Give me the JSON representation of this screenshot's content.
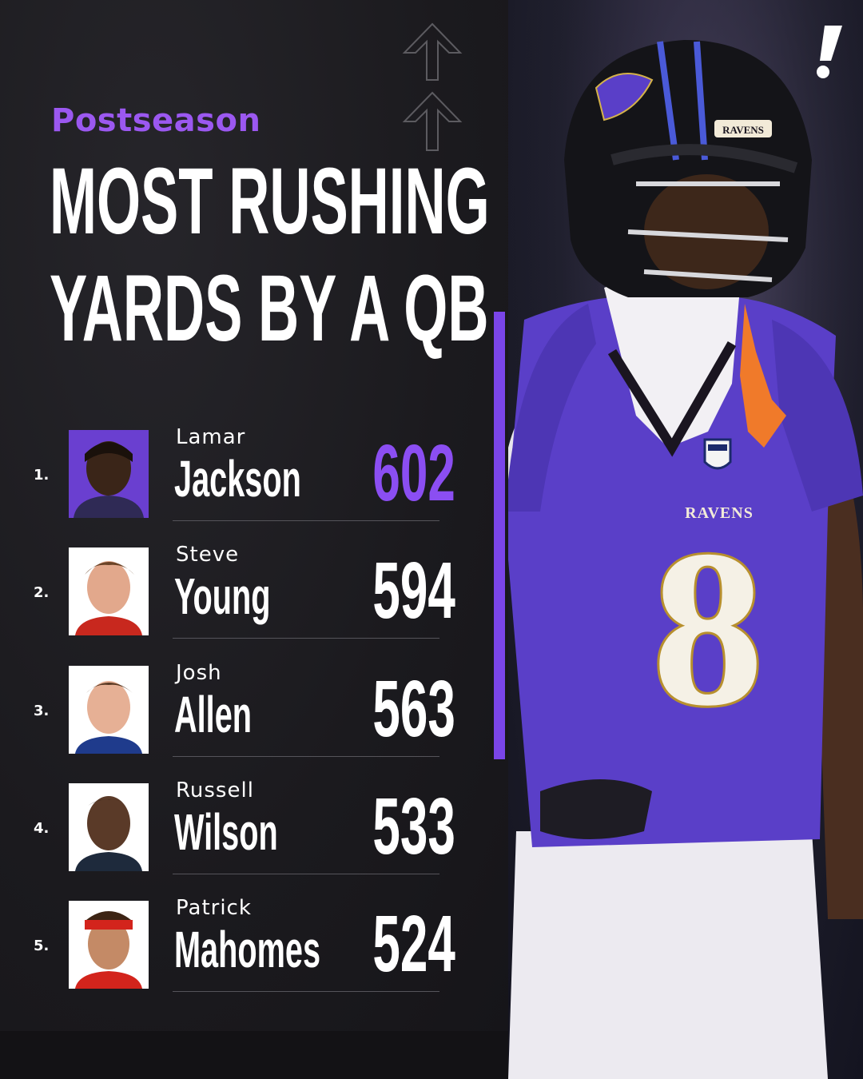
{
  "header": {
    "subtitle": "Postseason",
    "title_line1": "MOST RUSHING",
    "title_line2": "YARDS BY A QB"
  },
  "leaders": [
    {
      "rank": "1.",
      "first": "Lamar",
      "last": "Jackson",
      "yards": "602"
    },
    {
      "rank": "2.",
      "first": "Steve",
      "last": "Young",
      "yards": "594"
    },
    {
      "rank": "3.",
      "first": "Josh",
      "last": "Allen",
      "yards": "563"
    },
    {
      "rank": "4.",
      "first": "Russell",
      "last": "Wilson",
      "yards": "533"
    },
    {
      "rank": "5.",
      "first": "Patrick",
      "last": "Mahomes",
      "yards": "524"
    }
  ],
  "hero": {
    "jersey_number": "8",
    "jersey_wordmark": "RAVENS",
    "helmet_wordmark": "RAVENS"
  },
  "colors": {
    "accent": "#8b4ef2",
    "background": "#1b1a1d",
    "jersey": "#5a3fc8"
  },
  "icons": [
    "up-arrow-icon",
    "exclamation-logo-icon",
    "nfl-shield-icon"
  ]
}
